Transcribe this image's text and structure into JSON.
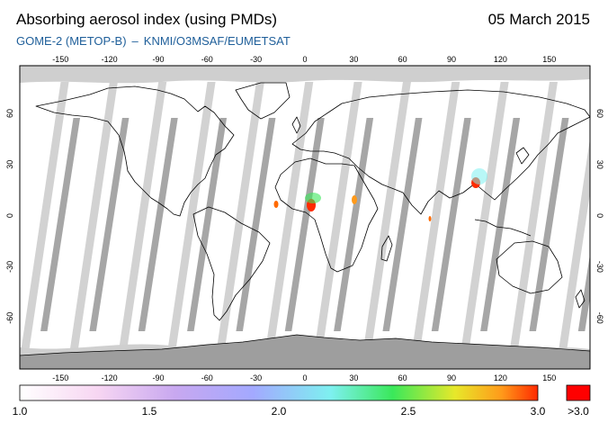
{
  "header": {
    "title": "Absorbing aerosol index (using PMDs)",
    "date": "05 March 2015",
    "instrument": "GOME-2 (METOP-B)",
    "separator": "–",
    "source": "KNMI/O3MSAF/EUMETSAT"
  },
  "map": {
    "lon_ticks": [
      "-150",
      "-120",
      "-90",
      "-60",
      "-30",
      "0",
      "30",
      "60",
      "90",
      "120",
      "150"
    ],
    "lat_ticks": [
      "60",
      "30",
      "0",
      "-30",
      "-60"
    ],
    "colors": {
      "ocean": "#ffffff",
      "coast": "#000000",
      "swath_light": "#d2d2d2",
      "swath_dark": "#a6a6a6",
      "polar": "#cfcfcf",
      "frame": "#000000"
    }
  },
  "colorbar": {
    "labels": [
      "1.0",
      "1.5",
      "2.0",
      "2.5",
      "3.0",
      ">3.0"
    ],
    "min": 1.0,
    "max": 3.0,
    "overflow_color": "#ff0000"
  }
}
